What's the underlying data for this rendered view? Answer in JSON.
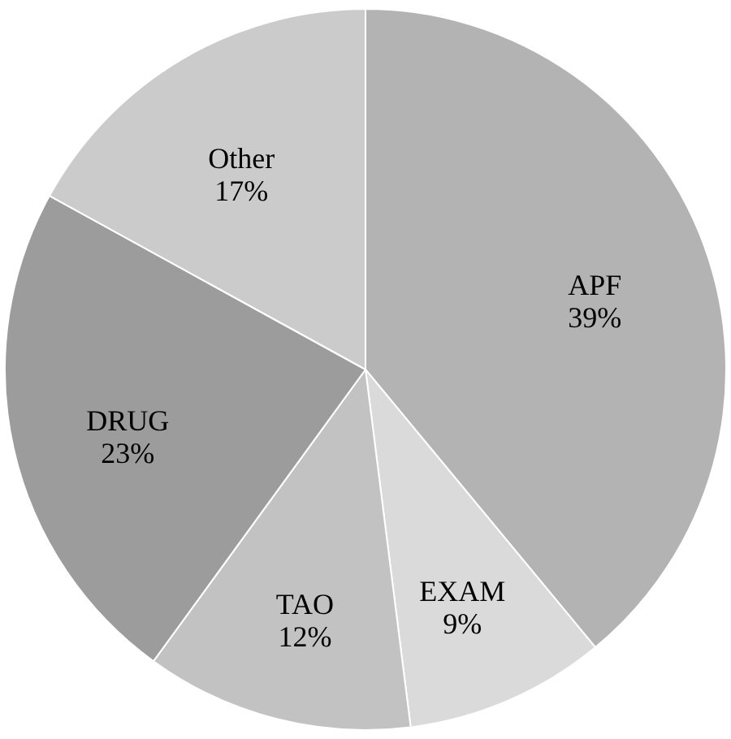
{
  "chart_data": {
    "type": "pie",
    "categories": [
      "APF",
      "EXAM",
      "TAO",
      "DRUG",
      "Other"
    ],
    "values": [
      39,
      9,
      12,
      23,
      17
    ],
    "value_labels": [
      "39%",
      "9%",
      "12%",
      "23%",
      "17%"
    ],
    "colors": [
      "#b3b3b3",
      "#dadada",
      "#c2c2c2",
      "#9c9c9c",
      "#cbcbcb"
    ]
  }
}
